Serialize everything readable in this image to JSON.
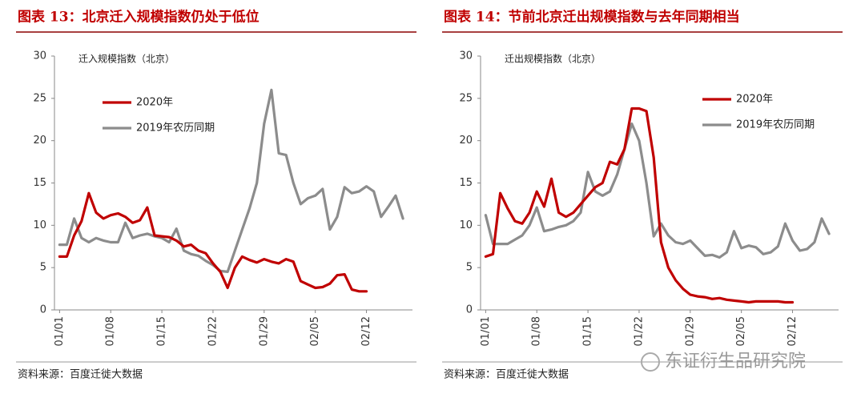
{
  "chart_data": [
    {
      "type": "line",
      "title": "图表 13：北京迁入规模指数仍处于低位",
      "subtitle": "迁入规模指数（北京）",
      "source": "资料来源：百度迁徙大数据",
      "legend": "upper center",
      "categories": [
        "01/01",
        null,
        null,
        null,
        null,
        null,
        null,
        "01/08",
        null,
        null,
        null,
        null,
        null,
        null,
        "01/15",
        null,
        null,
        null,
        null,
        null,
        null,
        "01/22",
        null,
        null,
        null,
        null,
        null,
        null,
        "01/29",
        null,
        null,
        null,
        null,
        null,
        null,
        "02/05",
        null,
        null,
        null,
        null,
        null,
        null,
        "02/12",
        null,
        null,
        null,
        null,
        null
      ],
      "ylim": [
        0,
        30
      ],
      "yticks": [
        0,
        5,
        10,
        15,
        20,
        25,
        30
      ],
      "series": [
        {
          "name": "2020年",
          "color": "#c00000",
          "values": [
            6.3,
            6.3,
            8.8,
            10.5,
            13.8,
            11.5,
            10.8,
            11.2,
            11.4,
            11,
            10.3,
            10.6,
            12.1,
            8.8,
            8.7,
            8.6,
            8.2,
            7.5,
            7.7,
            7,
            6.7,
            5.5,
            4.5,
            2.6,
            5,
            6.3,
            5.9,
            5.6,
            6,
            5.7,
            5.5,
            6,
            5.7,
            3.4,
            3,
            2.6,
            2.7,
            3.1,
            4.1,
            4.2,
            2.4,
            2.2,
            2.2,
            null,
            null,
            null,
            null,
            null
          ]
        },
        {
          "name": "2019年农历同期",
          "color": "#8c8c8c",
          "values": [
            7.7,
            7.7,
            10.8,
            8.5,
            8,
            8.5,
            8.2,
            8,
            8,
            10.3,
            8.5,
            8.8,
            9,
            8.7,
            8.5,
            8,
            9.6,
            7,
            6.6,
            6.4,
            5.8,
            5.3,
            4.6,
            4.5,
            7,
            9.5,
            12,
            15,
            22,
            26,
            18.5,
            18.3,
            15,
            12.5,
            13.2,
            13.5,
            14.3,
            9.5,
            11,
            14.5,
            13.8,
            14,
            14.6,
            14,
            11,
            12.2,
            13.5,
            10.8
          ]
        }
      ]
    },
    {
      "type": "line",
      "title": "图表 14：节前北京迁出规模指数与去年同期相当",
      "subtitle": "迁出规模指数（北京）",
      "source": "资料来源：百度迁徙大数据",
      "legend": "upper right",
      "categories": [
        "01/01",
        null,
        null,
        null,
        null,
        null,
        null,
        "01/08",
        null,
        null,
        null,
        null,
        null,
        null,
        "01/15",
        null,
        null,
        null,
        null,
        null,
        null,
        "01/22",
        null,
        null,
        null,
        null,
        null,
        null,
        "01/29",
        null,
        null,
        null,
        null,
        null,
        null,
        "02/05",
        null,
        null,
        null,
        null,
        null,
        null,
        "02/12",
        null,
        null,
        null,
        null,
        null
      ],
      "ylim": [
        0,
        30
      ],
      "yticks": [
        0,
        5,
        10,
        15,
        20,
        25,
        30
      ],
      "series": [
        {
          "name": "2020年",
          "color": "#c00000",
          "values": [
            6.3,
            6.6,
            13.8,
            12,
            10.5,
            10.2,
            11.5,
            14,
            12.2,
            15.5,
            11.5,
            11,
            11.5,
            12.5,
            13.5,
            14.5,
            15,
            17.5,
            17.2,
            19,
            23.8,
            23.8,
            23.5,
            18,
            8,
            5,
            3.5,
            2.5,
            1.8,
            1.6,
            1.5,
            1.3,
            1.4,
            1.2,
            1.1,
            1.0,
            0.9,
            1.0,
            1.0,
            1.0,
            1.0,
            0.9,
            0.9,
            null,
            null,
            null,
            null,
            null
          ]
        },
        {
          "name": "2019年农历同期",
          "color": "#8c8c8c",
          "values": [
            11.2,
            7.8,
            7.8,
            7.8,
            8.3,
            8.8,
            10,
            12.1,
            9.3,
            9.5,
            9.8,
            10,
            10.5,
            11.5,
            16.3,
            14,
            13.5,
            14,
            16,
            19,
            22,
            20,
            15,
            8.7,
            10.2,
            8.8,
            8,
            7.8,
            8.2,
            7.3,
            6.4,
            6.5,
            6.2,
            6.8,
            9.3,
            7.3,
            7.6,
            7.4,
            6.6,
            6.8,
            7.5,
            10.2,
            8.2,
            7,
            7.2,
            8,
            10.8,
            9
          ]
        }
      ]
    }
  ],
  "watermark": "东证衍生品研究院"
}
